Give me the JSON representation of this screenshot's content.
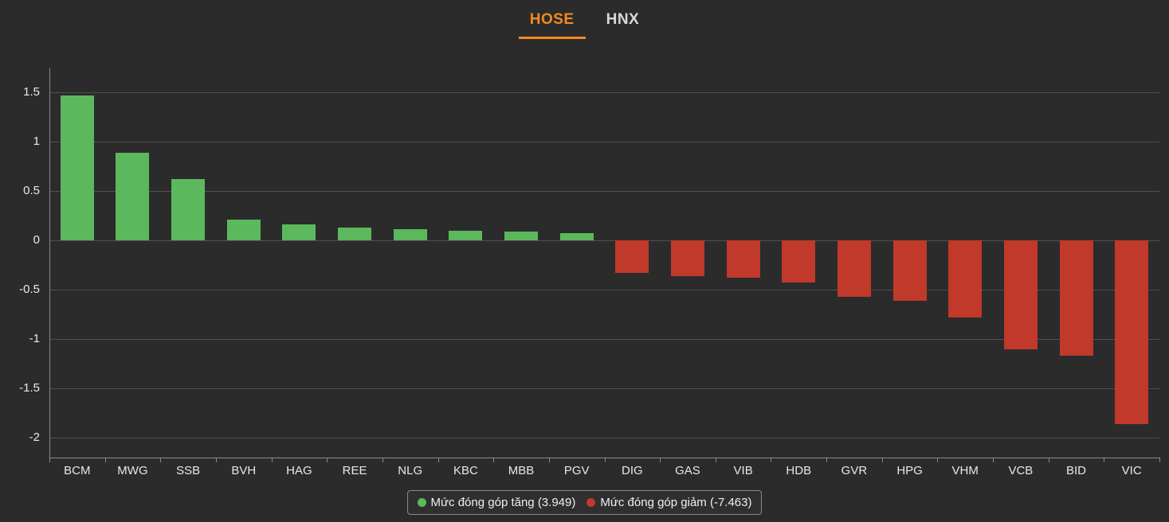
{
  "tabs": [
    {
      "label": "HOSE",
      "active": true
    },
    {
      "label": "HNX",
      "active": false
    }
  ],
  "colors": {
    "background": "#2b2b2b",
    "accent_orange": "#f28a1e",
    "positive": "#5cb85c",
    "negative": "#c0392b",
    "grid": "#4f4f4f",
    "axis": "#8a8a8a",
    "text": "#e8e8e8"
  },
  "chart_data": {
    "type": "bar",
    "title": "",
    "xlabel": "",
    "ylabel": "",
    "categories": [
      "BCM",
      "MWG",
      "SSB",
      "BVH",
      "HAG",
      "REE",
      "NLG",
      "KBC",
      "MBB",
      "PGV",
      "DIG",
      "GAS",
      "VIB",
      "HDB",
      "GVR",
      "HPG",
      "VHM",
      "VCB",
      "BID",
      "VIC"
    ],
    "values": [
      1.47,
      0.89,
      0.62,
      0.21,
      0.16,
      0.13,
      0.11,
      0.1,
      0.09,
      0.07,
      -0.33,
      -0.36,
      -0.38,
      -0.43,
      -0.57,
      -0.61,
      -0.78,
      -1.1,
      -1.17,
      -1.86
    ],
    "positive_color": "#5cb85c",
    "negative_color": "#c0392b",
    "yticks": [
      "1.5",
      "1",
      "0.5",
      "0",
      "-0.5",
      "-1",
      "-1.5",
      "-2"
    ],
    "ytick_values": [
      1.5,
      1,
      0.5,
      0,
      -0.5,
      -1,
      -1.5,
      -2
    ],
    "ylim": [
      -2.2,
      1.75
    ],
    "grid": true,
    "legend_position": "bottom",
    "legend": [
      {
        "label": "Mức đóng góp tăng (3.949)",
        "color": "#5cb85c"
      },
      {
        "label": "Mức đóng góp giảm (-7.463)",
        "color": "#c0392b"
      }
    ]
  }
}
